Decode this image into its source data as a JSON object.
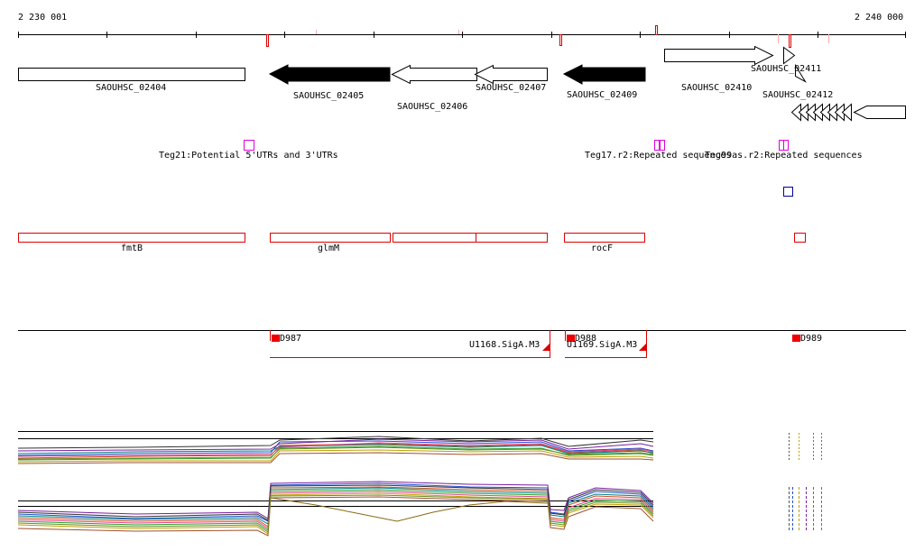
{
  "ruler": {
    "start_label": "2 230 001",
    "end_label": "2 240 000"
  },
  "genes": [
    {
      "id": "SAOUHSC_02404",
      "label": "SAOUHSC_02404",
      "style": "box"
    },
    {
      "id": "SAOUHSC_02405",
      "label": "SAOUHSC_02405",
      "style": "filled-left"
    },
    {
      "id": "SAOUHSC_02406",
      "label": "SAOUHSC_02406",
      "style": "open-left"
    },
    {
      "id": "SAOUHSC_02407",
      "label": "SAOUHSC_02407",
      "style": "open-left"
    },
    {
      "id": "SAOUHSC_02409",
      "label": "SAOUHSC_02409",
      "style": "filled-left"
    },
    {
      "id": "SAOUHSC_02410",
      "label": "SAOUHSC_02410",
      "style": "open-right"
    },
    {
      "id": "SAOUHSC_02411",
      "label": "SAOUHSC_02411",
      "style": "open-right"
    },
    {
      "id": "SAOUHSC_02412",
      "label": "SAOUHSC_02412",
      "style": "open-left"
    }
  ],
  "features": [
    {
      "id": "Teg21",
      "label": "Teg21:Potential 5'UTRs and 3'UTRs"
    },
    {
      "id": "Teg17",
      "label": "Teg17.r2:Repeated sequences"
    },
    {
      "id": "Teg99as",
      "label": "Teg99as.r2:Repeated sequences"
    }
  ],
  "operons": [
    {
      "id": "fmtB",
      "label": "fmtB"
    },
    {
      "id": "glmM",
      "label": "glmM"
    },
    {
      "id": "rocF",
      "label": "rocF"
    }
  ],
  "promoters": [
    {
      "id": "D987",
      "label": "D987"
    },
    {
      "id": "D988",
      "label": "D988"
    },
    {
      "id": "D989",
      "label": "D989"
    }
  ],
  "transcripts": [
    {
      "id": "U1168",
      "label": "U1168.SigA.M3"
    },
    {
      "id": "U1169",
      "label": "U1169.SigA.M3"
    }
  ],
  "colors": {
    "track_red": "#dd0000",
    "feature_magenta": "#dd00dd",
    "marker_blue": "#000099",
    "promoter_red": "#ee0000"
  }
}
